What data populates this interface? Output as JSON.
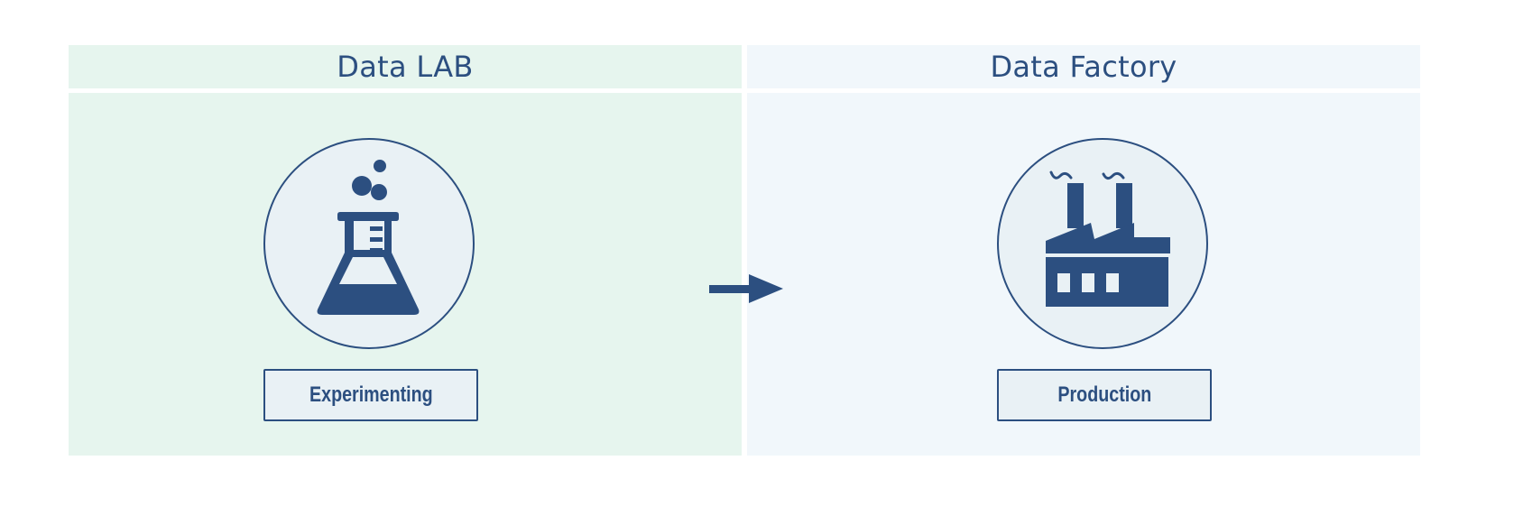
{
  "diagram": {
    "lab": {
      "title": "Data LAB",
      "icon": "flask-icon",
      "label": "Experimenting",
      "background": "#e6f5ee"
    },
    "factory": {
      "title": "Data Factory",
      "icon": "factory-icon",
      "label": "Production",
      "background": "#f1f7fb"
    },
    "flow": "lab-to-factory-arrow"
  },
  "colors": {
    "primary": "#2c4f80",
    "circle_fill": "#e9f1f5"
  }
}
